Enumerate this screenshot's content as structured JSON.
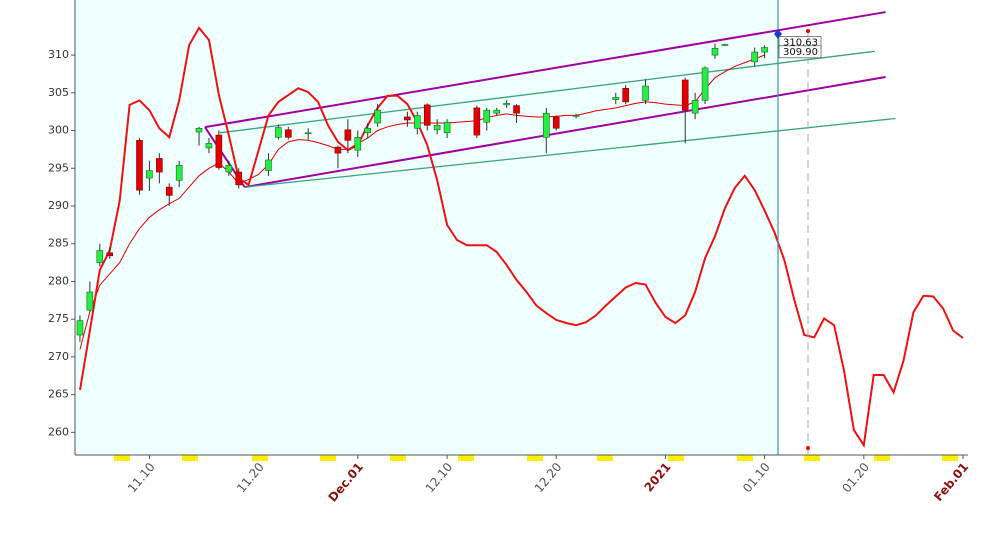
{
  "chart_data": {
    "type": "candlestick",
    "ylim": [
      257,
      317.3
    ],
    "yticks": [
      260,
      265,
      270,
      275,
      280,
      285,
      290,
      295,
      300,
      305,
      310
    ],
    "categories": [
      null,
      null,
      null,
      null,
      null,
      null,
      null,
      "11.10",
      null,
      null,
      null,
      null,
      null,
      null,
      null,
      null,
      null,
      null,
      "11.20",
      null,
      null,
      null,
      null,
      null,
      null,
      null,
      null,
      null,
      "Dec.01",
      null,
      null,
      null,
      null,
      null,
      null,
      null,
      null,
      "12.10",
      null,
      null,
      null,
      null,
      null,
      null,
      null,
      null,
      null,
      null,
      "12.20",
      null,
      null,
      null,
      null,
      null,
      null,
      null,
      null,
      null,
      null,
      "2021",
      null,
      null,
      null,
      null,
      null,
      null,
      null,
      null,
      null,
      "01.10",
      null,
      null,
      null,
      null,
      null,
      null,
      null,
      null,
      null,
      "01.20",
      null,
      null,
      null,
      null,
      null,
      null,
      null,
      null,
      null,
      "Feb.01"
    ],
    "up_color": "#22ee44",
    "down_color": "#e00000",
    "open": [
      272.9,
      276.2,
      282.5,
      283.8,
      null,
      null,
      298.7,
      293.7,
      296.3,
      292.5,
      293.4,
      null,
      299.8,
      297.7,
      299.4,
      294.5,
      294.5,
      null,
      null,
      294.7,
      299.1,
      300.1,
      null,
      299.6,
      null,
      null,
      297.8,
      300.1,
      297.4,
      299.7,
      301.0,
      null,
      null,
      301.8,
      300.3,
      303.4,
      300.1,
      299.7,
      null,
      null,
      303,
      301.1,
      302.3,
      303.4,
      303.3,
      null,
      null,
      299.1,
      301.8,
      null,
      301.9,
      null,
      null,
      null,
      304.1,
      305.6,
      null,
      304.0,
      null,
      null,
      null,
      306.7,
      302.3,
      304.0,
      310.0,
      311.3,
      null,
      null,
      309.1,
      310.4,
      null,
      null,
      null,
      null,
      null,
      null,
      null,
      null,
      null,
      null,
      null,
      null,
      null,
      null,
      null,
      null,
      null,
      null,
      null,
      null
    ],
    "high": [
      275.5,
      280,
      285,
      284.5,
      null,
      null,
      299,
      296,
      297,
      293,
      296,
      null,
      300.5,
      299,
      300,
      296,
      295,
      null,
      null,
      297,
      300.8,
      300.5,
      null,
      300.3,
      null,
      null,
      298,
      301.5,
      300,
      301,
      303.5,
      null,
      null,
      302.5,
      302.5,
      303.6,
      301.5,
      301.5,
      null,
      null,
      303.3,
      303,
      303,
      304,
      303.5,
      null,
      null,
      303,
      302,
      null,
      302.2,
      null,
      null,
      null,
      305,
      306,
      null,
      306.8,
      null,
      null,
      null,
      307,
      305,
      308.5,
      311.5,
      311.5,
      null,
      null,
      311,
      311.3,
      null,
      null,
      null,
      null,
      null,
      null,
      null,
      null,
      null,
      null,
      null,
      null,
      null,
      null,
      null,
      null,
      null,
      null,
      null,
      null
    ],
    "low": [
      272,
      276,
      282,
      283,
      null,
      null,
      291.5,
      292,
      293,
      290,
      292.5,
      null,
      298,
      297,
      294.8,
      294,
      292.3,
      null,
      null,
      294,
      298.8,
      298.8,
      null,
      298.8,
      null,
      null,
      295,
      297,
      296.5,
      299,
      300.5,
      null,
      null,
      300.5,
      299.5,
      300,
      299.5,
      299,
      null,
      null,
      299,
      300,
      302,
      303,
      301,
      null,
      null,
      297,
      300,
      null,
      301.6,
      null,
      null,
      null,
      303.5,
      303.5,
      null,
      303.5,
      null,
      null,
      null,
      298.3,
      301.5,
      303.5,
      309.5,
      311.2,
      null,
      null,
      308.5,
      309.6,
      null,
      null,
      null,
      null,
      null,
      null,
      null,
      null,
      null,
      null,
      null,
      null,
      null,
      null,
      null,
      null,
      null,
      null,
      null,
      null
    ],
    "close": [
      274.8,
      278.6,
      284.1,
      283.4,
      null,
      null,
      292.1,
      294.7,
      294.5,
      291.4,
      295.4,
      null,
      300.3,
      298.3,
      295.1,
      295.4,
      292.8,
      null,
      null,
      296.1,
      300.4,
      299.1,
      null,
      299.7,
      null,
      null,
      297.0,
      298.7,
      299.1,
      300.3,
      302.7,
      null,
      null,
      301.4,
      302.0,
      300.7,
      300.7,
      301.1,
      null,
      null,
      299.4,
      302.7,
      302.7,
      303.6,
      302.3,
      null,
      null,
      302.3,
      300.3,
      null,
      302.0,
      null,
      null,
      null,
      304.4,
      303.8,
      null,
      305.9,
      null,
      null,
      null,
      302.7,
      304.0,
      308.3,
      310.9,
      311.4,
      null,
      null,
      310.4,
      311.0,
      null,
      null,
      null,
      null,
      null,
      null,
      null,
      null,
      null,
      null,
      null,
      null,
      null,
      null,
      null,
      null,
      null,
      null,
      null,
      null
    ],
    "series": [
      {
        "color": "#e00000",
        "width": 1,
        "values": [
          271,
          276,
          279.5,
          281,
          282.5,
          285,
          287,
          288.5,
          289.5,
          290.3,
          291,
          292.5,
          294,
          295,
          295.7,
          294.5,
          293,
          293.5,
          294.2,
          295.5,
          297.5,
          298.5,
          298.8,
          298.7,
          298.4,
          298,
          297.5,
          297.5,
          298.3,
          299,
          300,
          300.5,
          300.8,
          301,
          301,
          301,
          301,
          301,
          301.1,
          301.2,
          301.3,
          301.7,
          302,
          302.2,
          302,
          301.9,
          301.8,
          301.8,
          301.9,
          302,
          302,
          302.3,
          302.6,
          302.8,
          303,
          303.3,
          303.6,
          303.8,
          303.7,
          303.5,
          303.4,
          303.3,
          303.8,
          305.5,
          307,
          307.8,
          308.5,
          309,
          309.5,
          310,
          null,
          null,
          null,
          null,
          null,
          null,
          null,
          null,
          null,
          null,
          null,
          null,
          null,
          null,
          null,
          null,
          null,
          null,
          null,
          null
        ]
      },
      {
        "color": "#ee1111",
        "width": 2,
        "values": [
          265.6,
          273.5,
          281.5,
          284.1,
          290.7,
          303.4,
          304.0,
          302.7,
          300.3,
          299.1,
          304.0,
          311.3,
          313.6,
          312.0,
          304.7,
          299.4,
          293.7,
          292.8,
          297.4,
          302.0,
          303.8,
          304.7,
          305.6,
          305.1,
          303.8,
          300.7,
          298.5,
          297.4,
          298.1,
          300.7,
          303.0,
          304.6,
          304.6,
          303.5,
          301.1,
          298.1,
          293.4,
          287.5,
          285.5,
          284.8,
          284.8,
          284.8,
          283.9,
          282.2,
          280.2,
          278.6,
          276.8,
          275.8,
          274.9,
          274.5,
          274.2,
          274.6,
          275.5,
          276.8,
          278.0,
          279.2,
          279.8,
          279.6,
          277.2,
          275.3,
          274.5,
          275.5,
          278.6,
          283.1,
          286.0,
          289.7,
          292.4,
          294.0,
          292.1,
          289.4,
          286.5,
          282.8,
          277.5,
          272.9,
          272.6,
          275.1,
          274.2,
          268.2,
          260.3,
          258.3,
          267.6,
          267.6,
          265.3,
          269.5,
          275.9,
          278.1,
          278.0,
          276.4,
          273.5,
          272.5
        ]
      }
    ],
    "channel_lines": [
      {
        "color": "#a000a0",
        "from": [
          12.6,
          300.45
        ],
        "to": [
          81.2,
          315.7
        ]
      },
      {
        "color": "#a000a0",
        "from": [
          16.6,
          292.5
        ],
        "to": [
          81.2,
          307.1
        ]
      },
      {
        "color": "#a000a0",
        "from": [
          12.6,
          300.45
        ],
        "to": [
          16.6,
          292.5
        ]
      },
      {
        "color": "#3aa37a",
        "from": [
          14.1,
          299.7
        ],
        "to": [
          80.1,
          310.5
        ]
      },
      {
        "color": "#3aa37a",
        "from": [
          16.6,
          292.5
        ],
        "to": [
          82.2,
          301.6
        ]
      }
    ],
    "price_labels": [
      {
        "value": 310.63,
        "label": "310.63"
      },
      {
        "value": 309.9,
        "label": "309.90"
      }
    ]
  }
}
